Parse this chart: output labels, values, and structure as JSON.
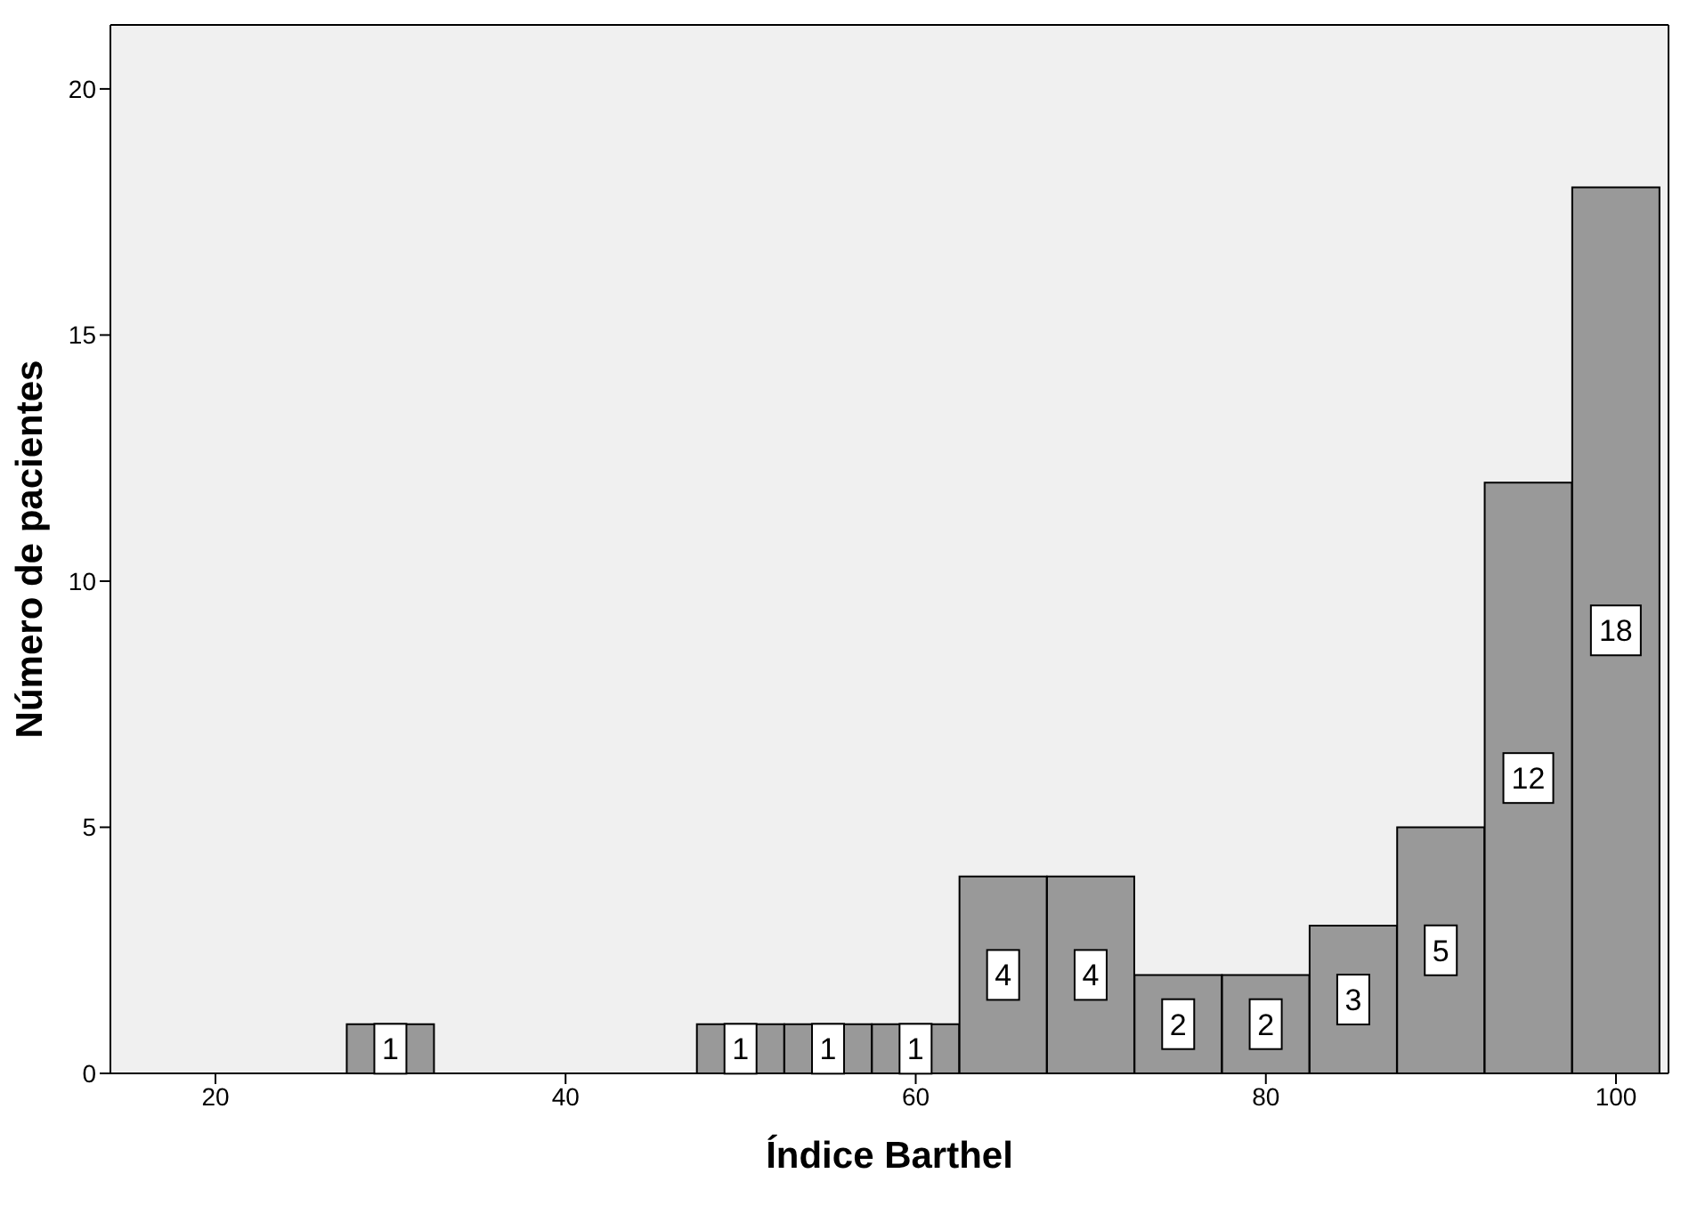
{
  "chart_data": {
    "type": "histogram",
    "xlabel": "Índice Barthel",
    "ylabel": "Número de pacientes",
    "bins": [
      27.5,
      32.5,
      37.5,
      42.5,
      47.5,
      52.5,
      57.5,
      62.5,
      67.5,
      72.5,
      77.5,
      82.5,
      87.5,
      92.5,
      97.5,
      102.5
    ],
    "values": [
      1,
      0,
      0,
      0,
      1,
      1,
      1,
      4,
      4,
      2,
      2,
      3,
      5,
      12,
      18
    ],
    "value_labels": [
      "1",
      null,
      null,
      null,
      "1",
      "1",
      "1",
      "4",
      "4",
      "2",
      "2",
      "3",
      "5",
      "12",
      "18"
    ],
    "color": "#999999",
    "xlim": [
      14,
      103
    ],
    "xticks": [
      20,
      40,
      60,
      80,
      100
    ],
    "ylim": [
      0,
      21.3
    ],
    "yticks": [
      0,
      5,
      10,
      15,
      20
    ],
    "grid": false
  }
}
